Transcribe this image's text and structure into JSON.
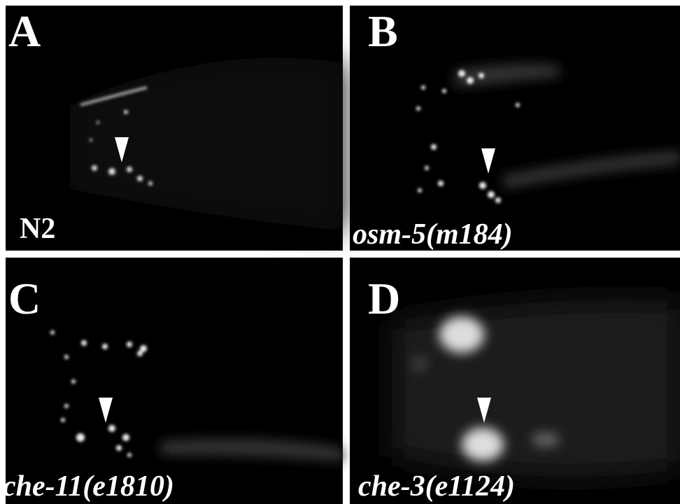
{
  "panels": [
    {
      "letter": "A",
      "label": "N2"
    },
    {
      "letter": "B",
      "label": "osm-5(m184)"
    },
    {
      "letter": "C",
      "label": "che-11(e1810)"
    },
    {
      "letter": "D",
      "label": "che-3(e1124)"
    }
  ]
}
